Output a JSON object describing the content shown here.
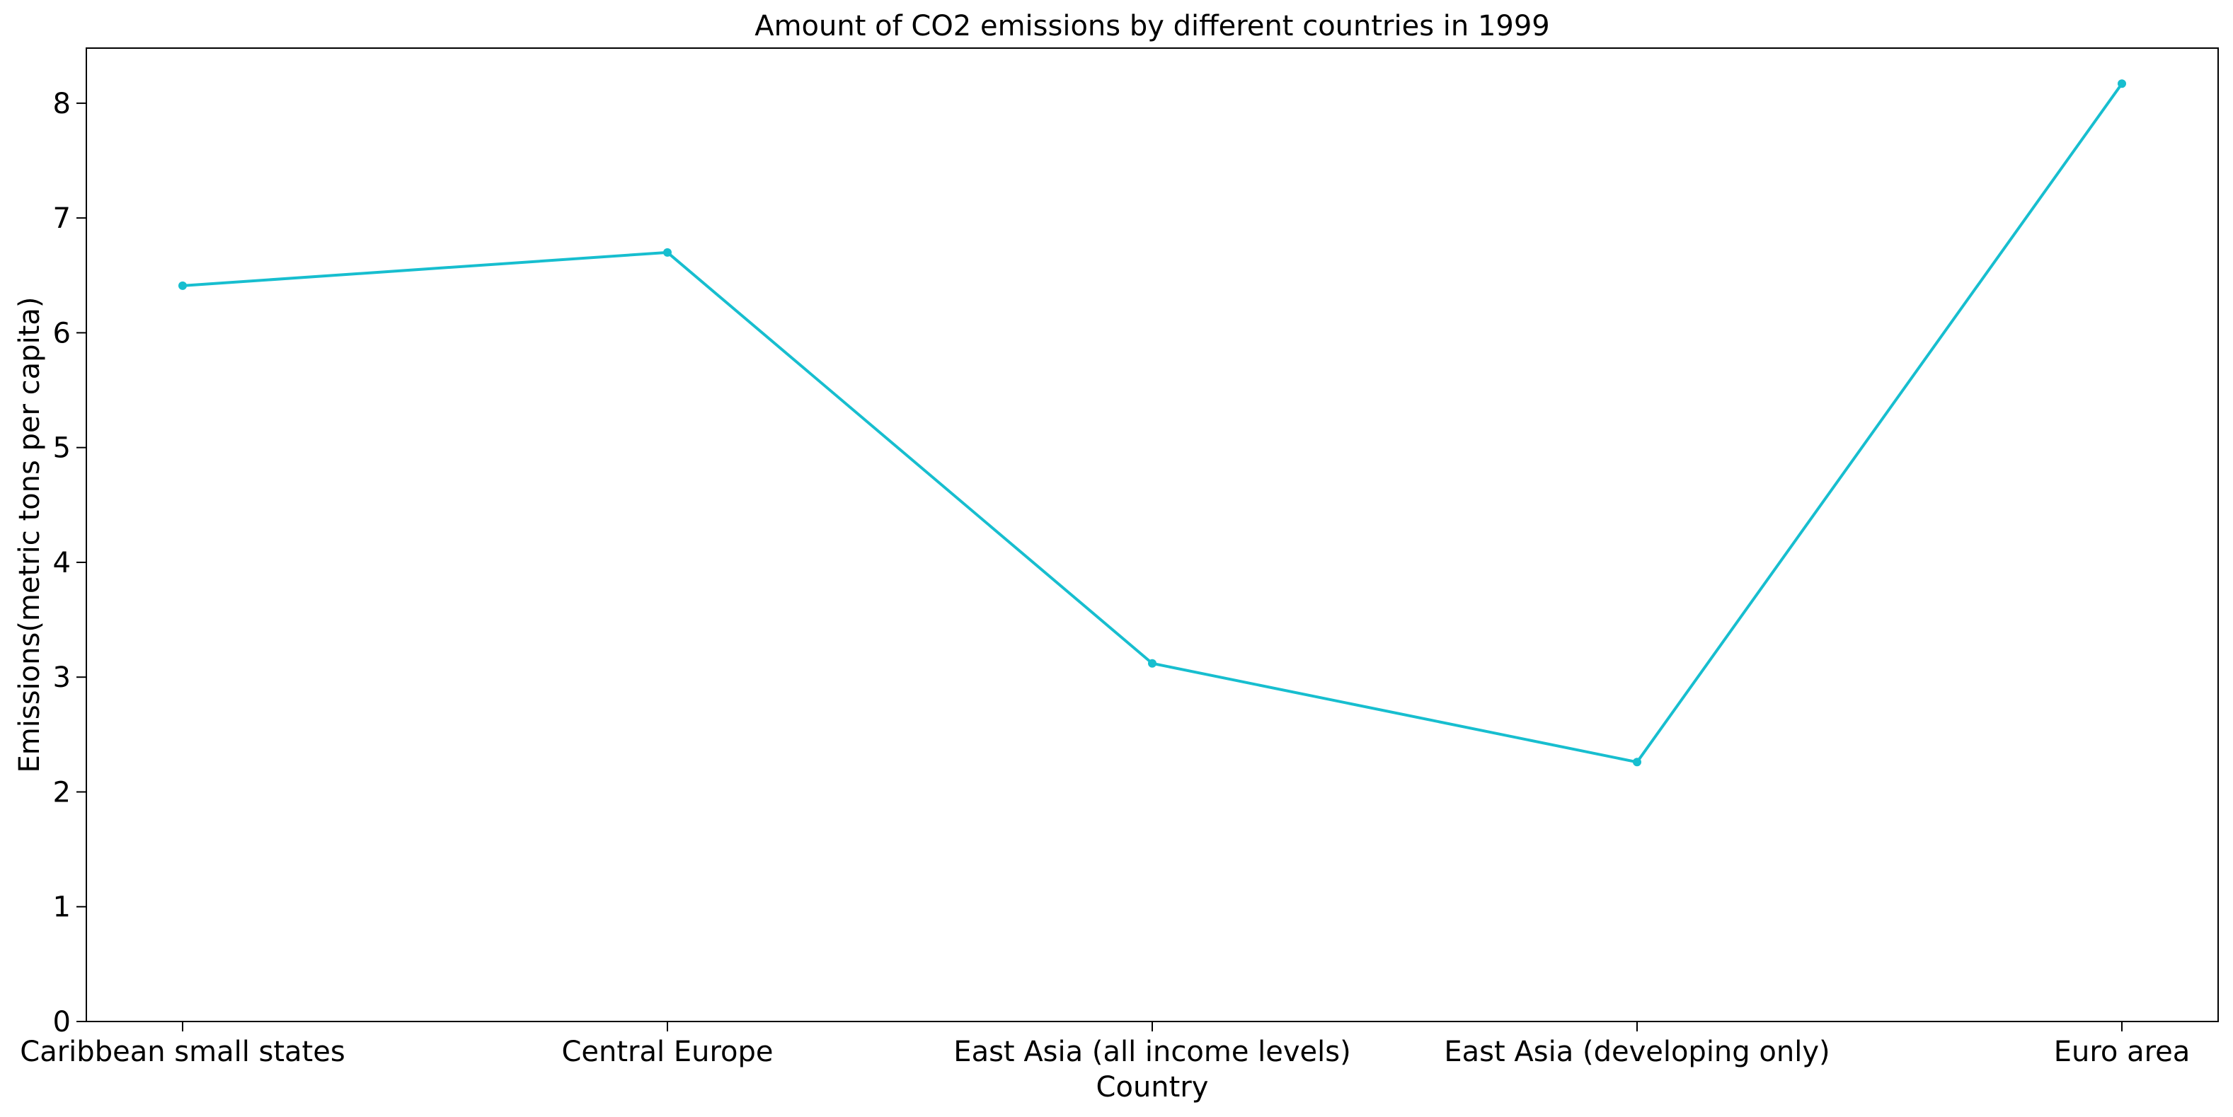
{
  "chart_data": {
    "type": "line",
    "title": "Amount of CO2 emissions by different countries in 1999",
    "xlabel": "Country",
    "ylabel": "Emissions(metric tons per capita)",
    "categories": [
      "Caribbean small states",
      "Central Europe",
      "East Asia (all income levels)",
      "East Asia (developing only)",
      "Euro area"
    ],
    "series": [
      {
        "values": [
          6.41,
          6.7,
          3.12,
          2.26,
          8.17
        ],
        "color": "#17becf",
        "marker": "circle"
      }
    ],
    "ylim": [
      0,
      8.48
    ],
    "yticks": [
      0,
      1,
      2,
      3,
      4,
      5,
      6,
      7,
      8
    ],
    "grid": false,
    "legend": "none"
  }
}
